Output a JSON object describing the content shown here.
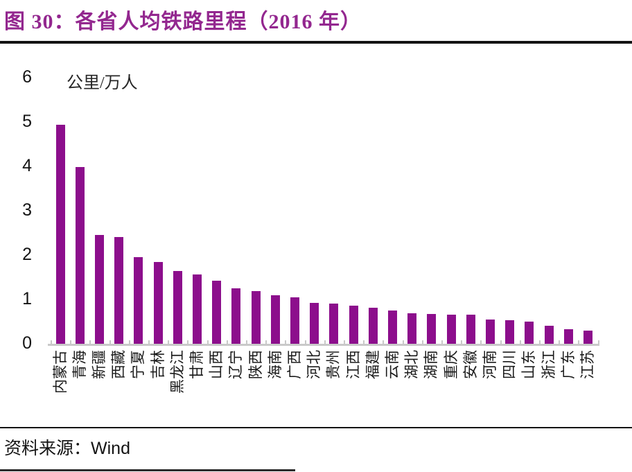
{
  "title": "图 30：各省人均铁路里程（2016 年）",
  "source_label": "资料来源：",
  "source_value": "Wind",
  "colors": {
    "bar": "#8C0E8C",
    "title_text": "#93278F",
    "axis_line": "#C9C9C9",
    "text": "#141414"
  },
  "chart_data": {
    "type": "bar",
    "title": "各省人均铁路里程（2016 年）",
    "figure_number": "图 30",
    "unit_label": "公里/万人",
    "xlabel": "",
    "ylabel": "公里/万人",
    "ylim": [
      0,
      6
    ],
    "yticks": [
      0,
      1,
      2,
      3,
      4,
      5,
      6
    ],
    "grid": false,
    "legend": false,
    "bar_color": "#8C0E8C",
    "categories": [
      "内蒙古",
      "青海",
      "新疆",
      "西藏",
      "宁夏",
      "吉林",
      "黑龙江",
      "甘肃",
      "山西",
      "辽宁",
      "陕西",
      "海南",
      "广西",
      "河北",
      "贵州",
      "江西",
      "福建",
      "云南",
      "湖北",
      "湖南",
      "重庆",
      "安徽",
      "河南",
      "四川",
      "山东",
      "浙江",
      "广东",
      "江苏"
    ],
    "values": [
      4.93,
      3.98,
      2.46,
      2.4,
      1.96,
      1.85,
      1.64,
      1.56,
      1.42,
      1.25,
      1.19,
      1.1,
      1.04,
      0.92,
      0.9,
      0.86,
      0.81,
      0.75,
      0.69,
      0.67,
      0.66,
      0.66,
      0.55,
      0.53,
      0.5,
      0.41,
      0.33,
      0.3
    ],
    "source": "Wind"
  }
}
